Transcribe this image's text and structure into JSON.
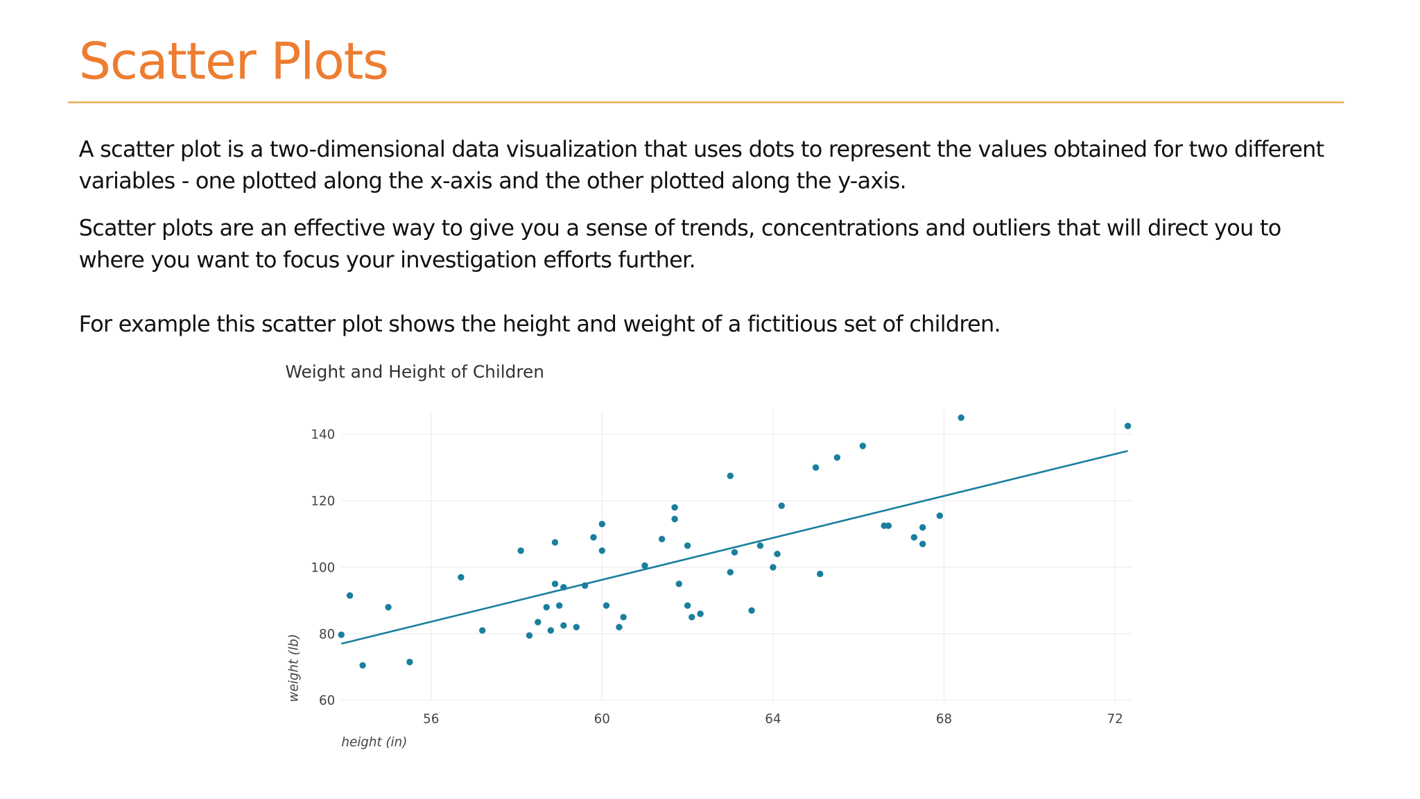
{
  "slide": {
    "title": "Scatter Plots",
    "paragraphs": [
      "A scatter plot is a two-dimensional data visualization that uses dots to represent the values obtained for two different variables - one plotted along the x-axis and the other plotted along the y-axis.",
      "Scatter plots are an effective way to give you a sense of trends, concentrations and outliers that will direct you to where you want to focus your investigation efforts further.",
      "For example this scatter plot shows the height and weight of a fictitious set of children."
    ]
  },
  "colors": {
    "title": "#ED7D31",
    "marker": "#1A7F9E",
    "grid": "#EEEEF2"
  },
  "chart_data": {
    "type": "scatter",
    "title": "Weight and Height of Children",
    "xlabel": "height (in)",
    "ylabel": "weight (lb)",
    "xticks": [
      56,
      60,
      64,
      68,
      72
    ],
    "yticks": [
      60,
      80,
      100,
      120,
      140
    ],
    "xlim": [
      53.9,
      72.3
    ],
    "ylim": [
      60,
      145
    ],
    "grid": true,
    "points": [
      [
        53.9,
        79.7
      ],
      [
        54.1,
        91.5
      ],
      [
        54.4,
        70.5
      ],
      [
        55.0,
        88
      ],
      [
        55.5,
        71.5
      ],
      [
        56.7,
        97
      ],
      [
        57.2,
        81
      ],
      [
        58.1,
        105
      ],
      [
        58.3,
        79.5
      ],
      [
        58.5,
        83.5
      ],
      [
        58.7,
        88
      ],
      [
        58.8,
        81
      ],
      [
        58.9,
        107.5
      ],
      [
        58.9,
        95
      ],
      [
        59.0,
        88.5
      ],
      [
        59.1,
        94
      ],
      [
        59.1,
        82.5
      ],
      [
        59.4,
        82
      ],
      [
        59.6,
        94.5
      ],
      [
        59.8,
        109
      ],
      [
        60.0,
        113
      ],
      [
        60.0,
        105
      ],
      [
        60.1,
        88.5
      ],
      [
        60.4,
        82
      ],
      [
        60.5,
        85
      ],
      [
        61.0,
        100.5
      ],
      [
        61.4,
        108.5
      ],
      [
        61.7,
        118
      ],
      [
        61.7,
        114.5
      ],
      [
        61.8,
        95
      ],
      [
        62.0,
        106.5
      ],
      [
        62.0,
        88.5
      ],
      [
        62.1,
        85
      ],
      [
        62.3,
        86
      ],
      [
        63.0,
        127.5
      ],
      [
        63.0,
        98.5
      ],
      [
        63.1,
        104.5
      ],
      [
        63.5,
        87
      ],
      [
        63.7,
        106.5
      ],
      [
        64.0,
        100
      ],
      [
        64.1,
        104
      ],
      [
        64.2,
        118.5
      ],
      [
        65.0,
        130
      ],
      [
        65.1,
        98
      ],
      [
        65.5,
        133
      ],
      [
        66.1,
        136.5
      ],
      [
        66.6,
        112.5
      ],
      [
        66.7,
        112.5
      ],
      [
        67.3,
        109
      ],
      [
        67.5,
        112
      ],
      [
        67.5,
        107
      ],
      [
        67.9,
        115.5
      ],
      [
        68.4,
        145
      ],
      [
        72.3,
        142.5
      ]
    ],
    "trendline": {
      "x": [
        53.9,
        72.3
      ],
      "y": [
        77,
        135
      ]
    }
  }
}
